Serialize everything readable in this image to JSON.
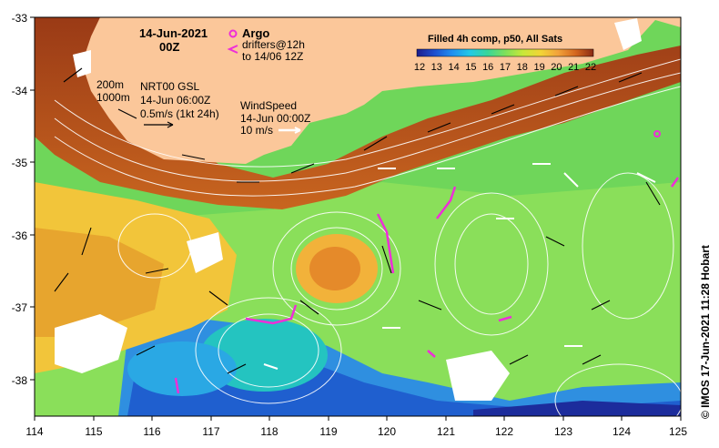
{
  "title": {
    "date": "14-Jun-2021",
    "time": "00Z"
  },
  "legend": {
    "argo_label": "Argo",
    "drifters_line1": "drifters@12h",
    "drifters_line2": "to 14/06 12Z"
  },
  "colorbar": {
    "title": "Filled 4h comp, p50, All Sats",
    "ticks": [
      "12",
      "13",
      "14",
      "15",
      "16",
      "17",
      "18",
      "19",
      "20",
      "21",
      "22"
    ],
    "colors": [
      "#1c1c8c",
      "#1e4fcf",
      "#1f8ff0",
      "#22c9e6",
      "#37d69a",
      "#7ee05a",
      "#c8e83a",
      "#f2d536",
      "#f2a23a",
      "#d4661e",
      "#8a2a14"
    ]
  },
  "isobaths": {
    "shallow": "200m",
    "deep": "1000m"
  },
  "currents": {
    "line1": "NRT00 GSL",
    "line2": "14-Jun 06:00Z",
    "line3": "0.5m/s (1kt 24h)"
  },
  "wind": {
    "line1": "WindSpeed",
    "line2": "14-Jun 00:00Z",
    "line3": "10 m/s"
  },
  "axes": {
    "x_ticks": [
      "114",
      "115",
      "116",
      "117",
      "118",
      "119",
      "120",
      "121",
      "122",
      "123",
      "124",
      "125"
    ],
    "y_ticks": [
      "-33",
      "-34",
      "-35",
      "-36",
      "-37",
      "-38"
    ]
  },
  "credit": "© IMOS 17-Jun-2021 11:28 Hobart",
  "colors": {
    "land": "#fbc79a",
    "warm": "#b8521e",
    "mid": "#f2c53a",
    "green": "#6fd65a",
    "cool": "#1f6fd0",
    "argo": "#ee2ed8"
  }
}
